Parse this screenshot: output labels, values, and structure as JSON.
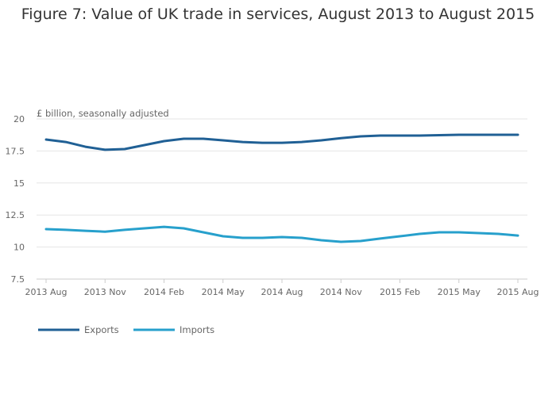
{
  "chart_data": {
    "type": "line",
    "title": "Figure 7: Value of UK trade in services, August 2013 to August 2015",
    "ylabel": "£ billion, seasonally adjusted",
    "xlabel": "",
    "ylim": [
      7.5,
      20
    ],
    "yticks": [
      "7.5",
      "10",
      "12.5",
      "15",
      "17.5",
      "20"
    ],
    "ytick_values": [
      7.5,
      10,
      12.5,
      15,
      17.5,
      20
    ],
    "xtick_labels": [
      "2013 Aug",
      "2013 Nov",
      "2014 Feb",
      "2014 May",
      "2014 Aug",
      "2014 Nov",
      "2015 Feb",
      "2015 May",
      "2015 Aug"
    ],
    "xtick_every": 3,
    "x": [
      "2013 Aug",
      "2013 Sep",
      "2013 Oct",
      "2013 Nov",
      "2013 Dec",
      "2014 Jan",
      "2014 Feb",
      "2014 Mar",
      "2014 Apr",
      "2014 May",
      "2014 Jun",
      "2014 Jul",
      "2014 Aug",
      "2014 Sep",
      "2014 Oct",
      "2014 Nov",
      "2014 Dec",
      "2015 Jan",
      "2015 Feb",
      "2015 Mar",
      "2015 Apr",
      "2015 May",
      "2015 Jun",
      "2015 Jul",
      "2015 Aug"
    ],
    "grid": true,
    "legend": "bottom-left",
    "series": [
      {
        "name": "Exports",
        "color": "#206095",
        "values": [
          18.39,
          18.2,
          17.83,
          17.59,
          17.65,
          17.96,
          18.27,
          18.45,
          18.45,
          18.33,
          18.2,
          18.14,
          18.14,
          18.2,
          18.33,
          18.5,
          18.64,
          18.7,
          18.7,
          18.7,
          18.73,
          18.76,
          18.76,
          18.76,
          18.76
        ]
      },
      {
        "name": "Imports",
        "color": "#27a0cc",
        "values": [
          11.4,
          11.34,
          11.27,
          11.2,
          11.34,
          11.46,
          11.58,
          11.46,
          11.15,
          10.84,
          10.72,
          10.72,
          10.78,
          10.72,
          10.53,
          10.41,
          10.47,
          10.66,
          10.84,
          11.03,
          11.15,
          11.15,
          11.09,
          11.03,
          10.9
        ]
      }
    ]
  }
}
